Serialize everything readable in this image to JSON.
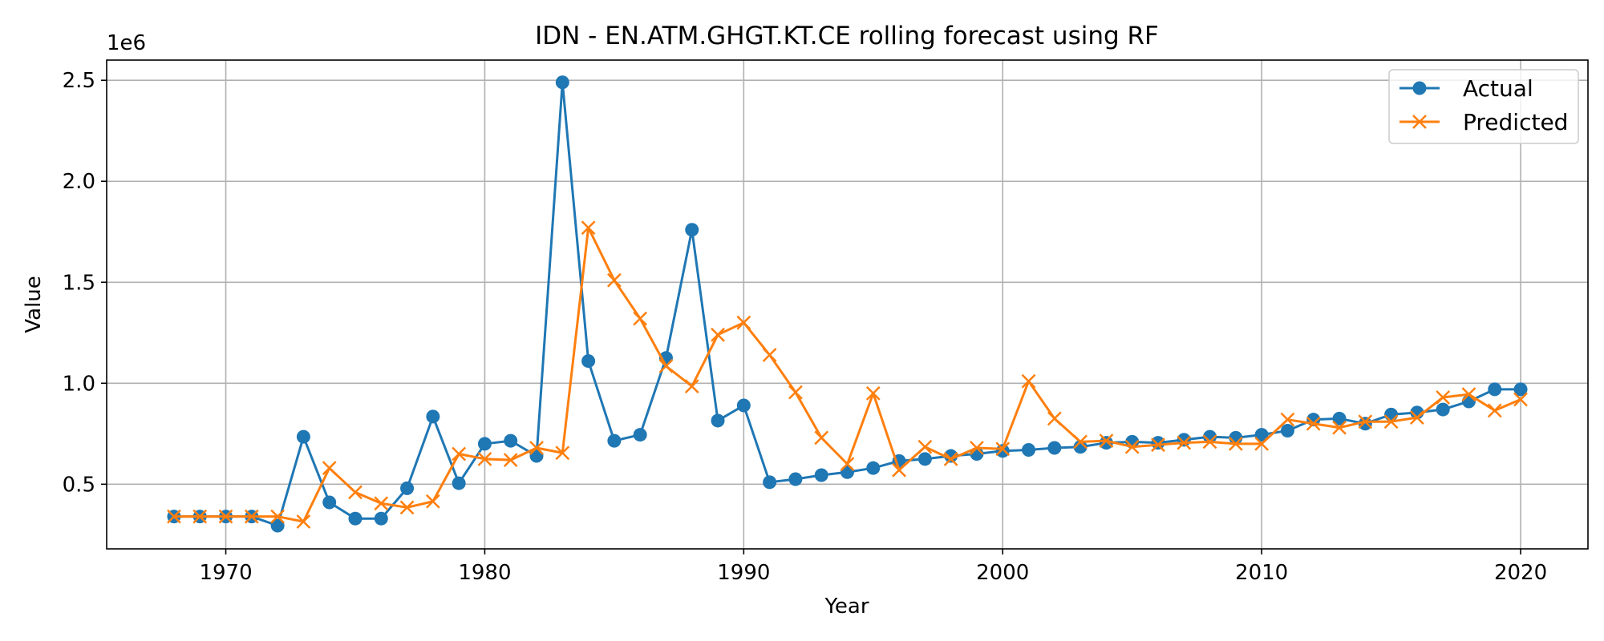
{
  "chart_data": {
    "type": "line",
    "title": "IDN - EN.ATM.GHGT.KT.CE rolling forecast using RF",
    "xlabel": "Year",
    "ylabel": "Value",
    "y_offset_label": "1e6",
    "y_scale": 1000000,
    "xlim": [
      1965.4,
      2022.6
    ],
    "ylim": [
      180000,
      2600000
    ],
    "x_ticks": [
      1970,
      1980,
      1990,
      2000,
      2010,
      2020
    ],
    "y_ticks": [
      500000,
      1000000,
      1500000,
      2000000,
      2500000
    ],
    "y_tick_labels": [
      "0.5",
      "1.0",
      "1.5",
      "2.0",
      "2.5"
    ],
    "grid": true,
    "legend_position": "top-right",
    "x": [
      1968,
      1969,
      1970,
      1971,
      1972,
      1973,
      1974,
      1975,
      1976,
      1977,
      1978,
      1979,
      1980,
      1981,
      1982,
      1983,
      1984,
      1985,
      1986,
      1987,
      1988,
      1989,
      1990,
      1991,
      1992,
      1993,
      1994,
      1995,
      1996,
      1997,
      1998,
      1999,
      2000,
      2001,
      2002,
      2003,
      2004,
      2005,
      2006,
      2007,
      2008,
      2009,
      2010,
      2011,
      2012,
      2013,
      2014,
      2015,
      2016,
      2017,
      2018,
      2019,
      2020
    ],
    "series": [
      {
        "name": "Actual",
        "color": "#1f77b4",
        "marker": "circle",
        "values": [
          340000,
          340000,
          340000,
          340000,
          295000,
          735000,
          410000,
          330000,
          330000,
          480000,
          835000,
          505000,
          700000,
          715000,
          640000,
          2490000,
          1110000,
          715000,
          745000,
          1125000,
          1760000,
          815000,
          890000,
          510000,
          525000,
          545000,
          560000,
          580000,
          615000,
          625000,
          640000,
          650000,
          665000,
          670000,
          680000,
          685000,
          705000,
          710000,
          705000,
          720000,
          735000,
          730000,
          745000,
          765000,
          820000,
          825000,
          800000,
          845000,
          855000,
          870000,
          910000,
          970000,
          970000
        ]
      },
      {
        "name": "Predicted",
        "color": "#ff7f0e",
        "marker": "x",
        "values": [
          340000,
          340000,
          340000,
          340000,
          340000,
          315000,
          580000,
          460000,
          405000,
          385000,
          415000,
          650000,
          625000,
          620000,
          680000,
          655000,
          1770000,
          1510000,
          1320000,
          1085000,
          985000,
          1240000,
          1300000,
          1140000,
          955000,
          730000,
          600000,
          950000,
          570000,
          685000,
          625000,
          680000,
          675000,
          1010000,
          825000,
          710000,
          715000,
          685000,
          695000,
          705000,
          710000,
          700000,
          700000,
          820000,
          800000,
          780000,
          810000,
          810000,
          830000,
          930000,
          945000,
          865000,
          920000
        ]
      }
    ]
  }
}
